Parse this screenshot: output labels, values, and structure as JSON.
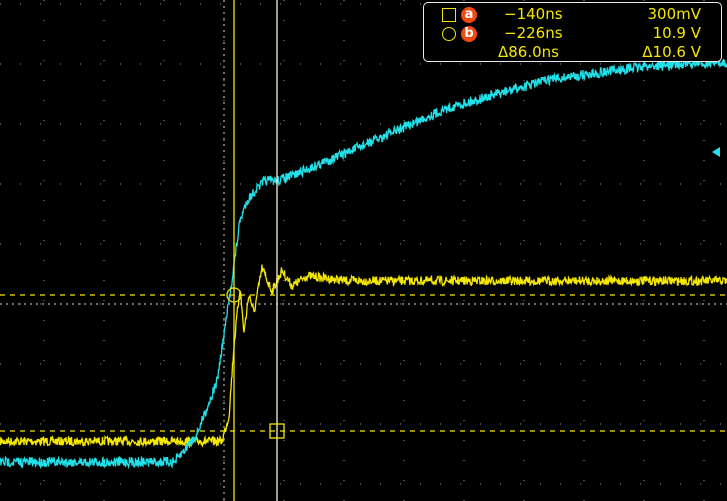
{
  "chart_data": {
    "type": "line",
    "title": "",
    "xlabel": "",
    "ylabel": "",
    "x_unit": "ns",
    "xlim": [
      -694,
      760
    ],
    "grid": true,
    "series": [
      {
        "channel": "yellow",
        "color": "#f5e800",
        "unit": "V",
        "points": [
          [
            -694,
            -0.5
          ],
          [
            -250,
            -0.5
          ],
          [
            -236,
            1.5
          ],
          [
            -226,
            7.0
          ],
          [
            -214,
            11.5
          ],
          [
            -206,
            8.0
          ],
          [
            -196,
            11.0
          ],
          [
            -186,
            9.5
          ],
          [
            -170,
            13.0
          ],
          [
            -150,
            11.2
          ],
          [
            -130,
            12.8
          ],
          [
            -110,
            11.6
          ],
          [
            -80,
            12.4
          ],
          [
            0,
            12.0
          ],
          [
            760,
            12.0
          ]
        ]
      },
      {
        "channel": "cyan",
        "color": "#22e0e8",
        "unit": "normalized",
        "points": [
          [
            -694,
            0.0
          ],
          [
            -344,
            0.0
          ],
          [
            -300,
            0.07
          ],
          [
            -260,
            0.2
          ],
          [
            -236,
            0.4
          ],
          [
            -214,
            0.6
          ],
          [
            -200,
            0.65
          ],
          [
            -180,
            0.68
          ],
          [
            -164,
            0.7
          ],
          [
            -140,
            0.7
          ],
          [
            -114,
            0.71
          ],
          [
            0,
            0.77
          ],
          [
            200,
            0.88
          ],
          [
            400,
            0.95
          ],
          [
            600,
            0.985
          ],
          [
            760,
            0.995
          ]
        ]
      }
    ]
  },
  "cursors": {
    "a": {
      "label": "a",
      "marker": "square",
      "time": "−140ns",
      "value": "300mV",
      "time_ns": -140,
      "value_v": 0.3
    },
    "b": {
      "label": "b",
      "marker": "circle",
      "time": "−226ns",
      "value": "10.9 V",
      "time_ns": -226,
      "value_v": 10.9
    },
    "delta_time": "Δ86.0ns",
    "delta_value": "Δ10.6 V"
  },
  "colors": {
    "cursor": "#f5e800",
    "badge": "#f04a10",
    "ch2": "#22e0e8",
    "grid": "#9a8f80"
  },
  "icons": {
    "ground_marker": "arrow-left-icon"
  }
}
